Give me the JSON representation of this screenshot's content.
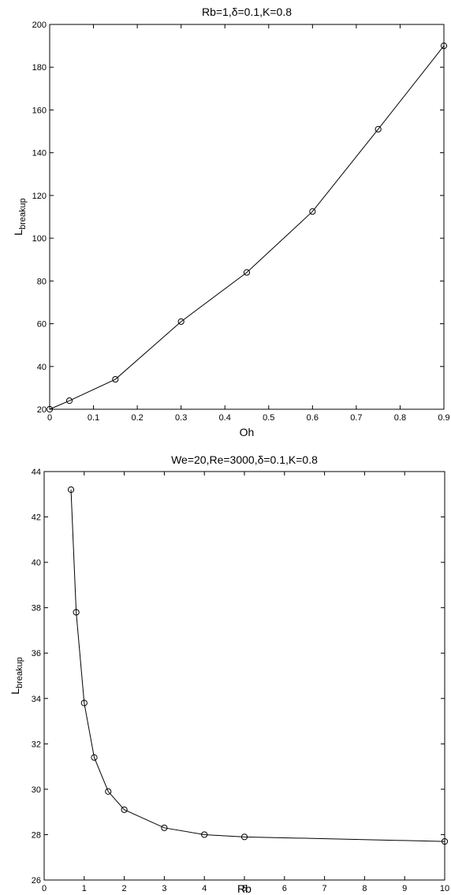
{
  "chart_data": [
    {
      "type": "line",
      "title": "Rb=1,δ=0.1,K=0.8",
      "xlabel": "Oh",
      "ylabel": {
        "main": "L",
        "sub": "breakup"
      },
      "xlim": [
        0,
        0.9
      ],
      "ylim": [
        20,
        200
      ],
      "xticks": [
        0,
        0.1,
        0.2,
        0.3,
        0.4,
        0.5,
        0.6,
        0.7,
        0.8,
        0.9
      ],
      "xtick_labels": [
        "0",
        "0.1",
        "0.2",
        "0.3",
        "0.4",
        "0.5",
        "0.6",
        "0.7",
        "0.8",
        "0.9"
      ],
      "yticks": [
        20,
        40,
        60,
        80,
        100,
        120,
        140,
        160,
        180,
        200
      ],
      "ytick_labels": [
        "20",
        "40",
        "60",
        "80",
        "100",
        "120",
        "140",
        "160",
        "180",
        "200"
      ],
      "grid": false,
      "marker": "circle",
      "series": [
        {
          "x": [
            0,
            0.045,
            0.15,
            0.3,
            0.45,
            0.6,
            0.75,
            0.9
          ],
          "y": [
            20,
            24,
            34,
            61,
            84,
            112.5,
            151,
            190
          ]
        }
      ]
    },
    {
      "type": "line",
      "title": "We=20,Re=3000,δ=0.1,K=0.8",
      "xlabel": "Rb",
      "ylabel": {
        "main": "L",
        "sub": "breakup"
      },
      "xlim": [
        0,
        10
      ],
      "ylim": [
        26,
        44
      ],
      "xticks": [
        0,
        1,
        2,
        3,
        4,
        5,
        6,
        7,
        8,
        9,
        10
      ],
      "xtick_labels": [
        "0",
        "1",
        "2",
        "3",
        "4",
        "5",
        "6",
        "7",
        "8",
        "9",
        "10"
      ],
      "yticks": [
        26,
        28,
        30,
        32,
        34,
        36,
        38,
        40,
        42,
        44
      ],
      "ytick_labels": [
        "26",
        "28",
        "30",
        "32",
        "34",
        "36",
        "38",
        "40",
        "42",
        "44"
      ],
      "grid": false,
      "marker": "circle",
      "series": [
        {
          "x": [
            0.67,
            0.8,
            1.0,
            1.25,
            1.6,
            2.0,
            3.0,
            4.0,
            5.0,
            10.0
          ],
          "y": [
            43.2,
            37.8,
            33.8,
            31.4,
            29.9,
            29.1,
            28.3,
            28.0,
            27.9,
            27.7
          ]
        }
      ]
    }
  ]
}
